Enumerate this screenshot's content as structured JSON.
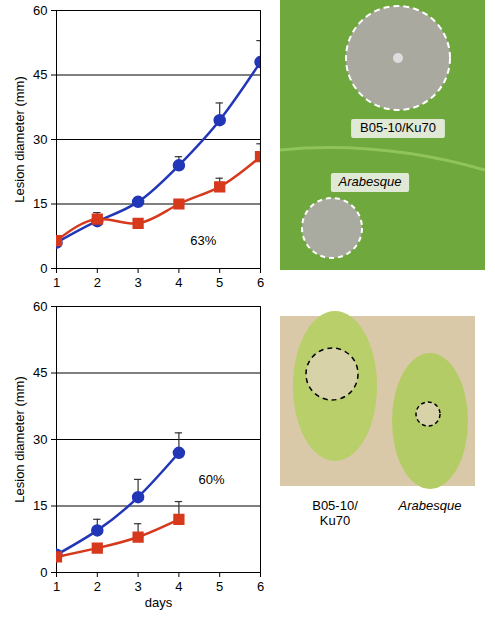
{
  "chart_data": [
    {
      "type": "line",
      "ylabel": "Lesion diameter (mm)",
      "xlim": [
        1,
        6
      ],
      "xticks": [
        1,
        2,
        3,
        4,
        5,
        6
      ],
      "ylim": [
        0,
        60
      ],
      "yticks": [
        0,
        15,
        30,
        45,
        60
      ],
      "grid": true,
      "series": [
        {
          "name": "B05-10/Ku70",
          "color": "#2236b8",
          "marker": "circle",
          "line_style": "solid",
          "x": [
            1,
            2,
            3,
            4,
            5,
            6
          ],
          "values": [
            6,
            11,
            15.5,
            24,
            34.5,
            48
          ],
          "errors": [
            1,
            1.5,
            1,
            2,
            4,
            5
          ]
        },
        {
          "name": "Arabesque",
          "color": "#d6391c",
          "marker": "square",
          "line_style": "solid",
          "x": [
            1,
            2,
            3,
            4,
            5,
            6
          ],
          "values": [
            6.5,
            11.5,
            10.5,
            15,
            19,
            26
          ],
          "errors": [
            1,
            1.5,
            1,
            1,
            2,
            3
          ]
        }
      ],
      "annotations": [
        {
          "text": "63%",
          "x": 4.6,
          "y": 6.5
        }
      ]
    },
    {
      "type": "line",
      "ylabel": "Lesion diameter (mm)",
      "xlabel": "days",
      "xlim": [
        1,
        6
      ],
      "xticks": [
        1,
        2,
        3,
        4,
        5,
        6
      ],
      "ylim": [
        0,
        60
      ],
      "yticks": [
        0,
        15,
        30,
        45,
        60
      ],
      "grid": true,
      "series": [
        {
          "name": "B05-10/Ku70",
          "color": "#2236b8",
          "marker": "circle",
          "line_style": "solid",
          "x": [
            1,
            2,
            3,
            4
          ],
          "values": [
            4,
            9.5,
            17,
            27
          ],
          "errors": [
            0.5,
            2.5,
            4,
            4.5
          ]
        },
        {
          "name": "Arabesque",
          "color": "#d6391c",
          "marker": "square",
          "line_style": "solid",
          "x": [
            1,
            2,
            3,
            4
          ],
          "values": [
            3.5,
            5.5,
            8,
            12
          ],
          "errors": [
            0.5,
            1,
            3,
            4
          ]
        }
      ],
      "annotations": [
        {
          "text": "60%",
          "x": 4.8,
          "y": 21
        }
      ]
    }
  ]
}
